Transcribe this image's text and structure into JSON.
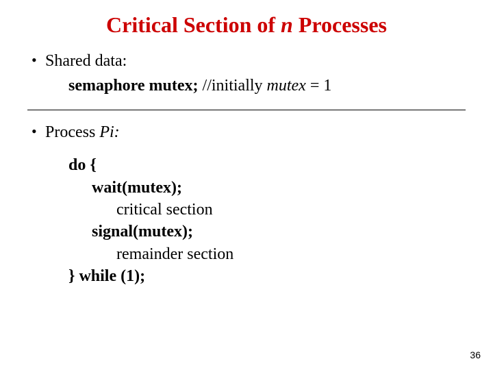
{
  "title": {
    "prefix": "Critical Section of ",
    "n": "n",
    "suffix": " Processes",
    "color": "#cc0000",
    "fontsize": 32
  },
  "bullet1": {
    "label": "Shared data:",
    "code_keyword": "semaphore mutex; ",
    "comment_prefix": "//initially ",
    "comment_var": "mutex",
    "comment_suffix": " = 1"
  },
  "bullet2": {
    "prefix": "Process ",
    "var": "Pi",
    "suffix": ":"
  },
  "code": {
    "l1": "do {",
    "l2": "wait(mutex);",
    "l3": "critical section",
    "l4": "signal(mutex);",
    "l5": "remainder section",
    "l6": "} while (1);"
  },
  "page_number": "36",
  "colors": {
    "title": "#cc0000",
    "text": "#000000",
    "background": "#ffffff",
    "divider": "#000000"
  },
  "fontsizes": {
    "title": 32,
    "body": 24,
    "page_number": 14
  }
}
